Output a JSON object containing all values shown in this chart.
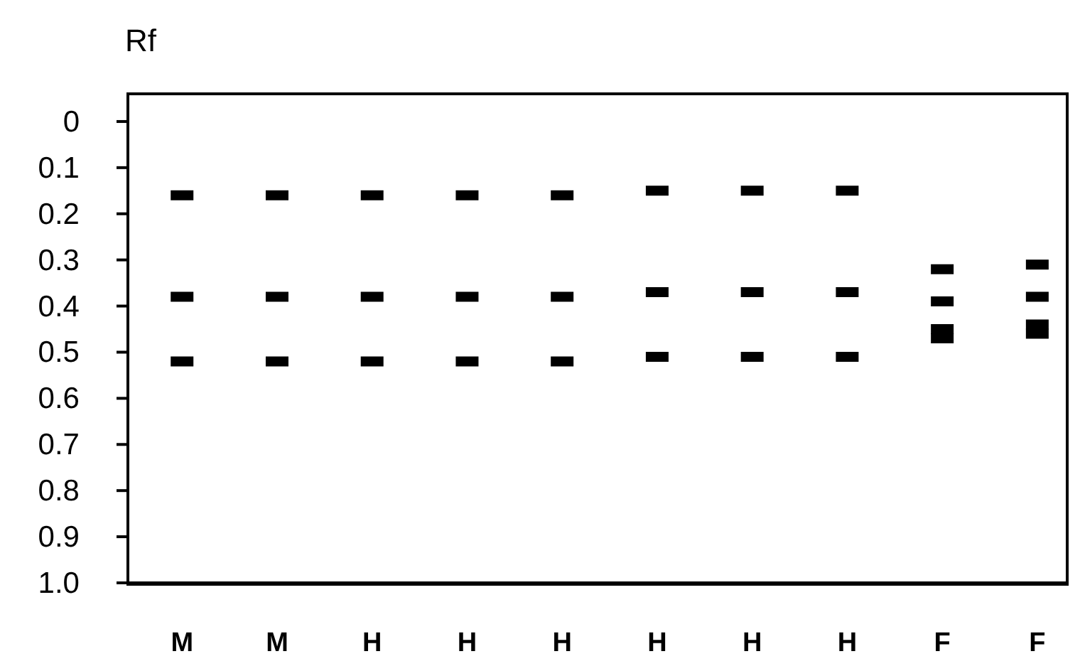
{
  "chart_data": {
    "type": "scatter",
    "ylabel": "Rf",
    "categories": [
      "M",
      "M",
      "H",
      "H",
      "H",
      "H",
      "H",
      "H",
      "F",
      "F"
    ],
    "series": [
      {
        "color": "#000000",
        "values": [
          0.16,
          0.16,
          0.16,
          0.16,
          0.16,
          0.15,
          0.15,
          0.15,
          null,
          null
        ]
      },
      {
        "color": "#000000",
        "values": [
          0.38,
          0.38,
          0.38,
          0.38,
          0.38,
          0.37,
          0.37,
          0.37,
          null,
          null
        ]
      },
      {
        "color": "#000000",
        "values": [
          0.52,
          0.52,
          0.52,
          0.52,
          0.52,
          0.51,
          0.51,
          0.51,
          null,
          null
        ]
      },
      {
        "color": "#000000",
        "values": [
          null,
          null,
          null,
          null,
          null,
          null,
          null,
          null,
          0.32,
          0.31
        ]
      },
      {
        "color": "#000000",
        "values": [
          null,
          null,
          null,
          null,
          null,
          null,
          null,
          null,
          0.39,
          0.38
        ]
      },
      {
        "color": "#000000",
        "values": [
          null,
          null,
          null,
          null,
          null,
          null,
          null,
          null,
          0.45,
          0.44
        ]
      },
      {
        "color": "#000000",
        "values": [
          null,
          null,
          null,
          null,
          null,
          null,
          null,
          null,
          0.47,
          0.46
        ]
      }
    ],
    "ylim": [
      1.0,
      -0.06
    ],
    "yticks": [
      0,
      0.1,
      0.2,
      0.3,
      0.4,
      0.5,
      0.6,
      0.7,
      0.8,
      0.9,
      {
        "value": 1,
        "label": "1.0"
      }
    ],
    "grid": false,
    "legend": false,
    "marker": "square"
  }
}
